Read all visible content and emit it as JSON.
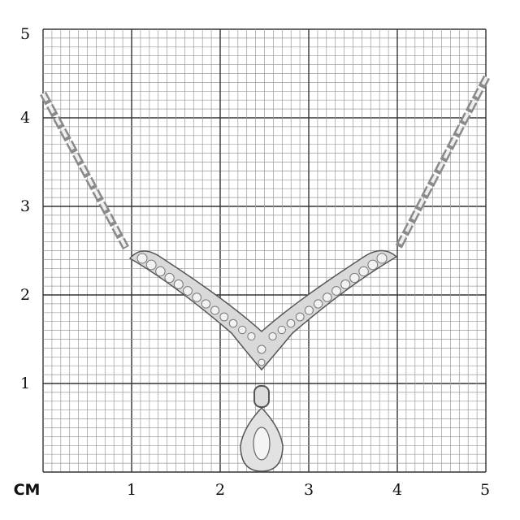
{
  "scale": {
    "unit_label": "CM",
    "x_ticks": [
      "1",
      "2",
      "3",
      "4",
      "5"
    ],
    "y_ticks": [
      "1",
      "2",
      "3",
      "4",
      "5"
    ],
    "minor_divisions_per_unit": 10
  },
  "colors": {
    "grid_major": "#333333",
    "grid_minor": "#9a9a9a",
    "metal": "#b8b8b8",
    "metal_dark": "#6e6e6e"
  }
}
